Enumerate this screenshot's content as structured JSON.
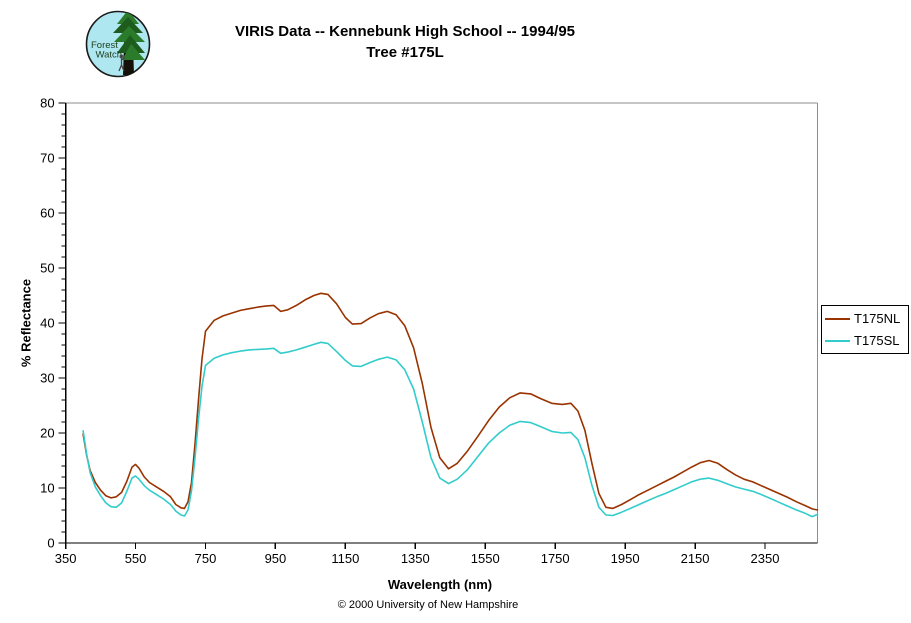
{
  "header": {
    "title_line1": "VIRIS Data -- Kennebunk High School -- 1994/95",
    "title_line2": "Tree #175L"
  },
  "logo": {
    "text_line1": "Forest",
    "text_line2": "Watch",
    "bg_color": "#aee7ef",
    "foliage_color": "#2a7c2a",
    "foliage_dark_color": "#1e5c1e",
    "trunk_color": "#151008",
    "text_color": "#1d3d1d"
  },
  "footer": {
    "copyright": "© 2000 University of New Hampshire"
  },
  "chart_data": {
    "type": "line",
    "title": "VIRIS Data -- Kennebunk High School -- 1994/95  Tree #175L",
    "xlabel": "Wavelength (nm)",
    "ylabel": "% Reflectance",
    "xlim": [
      350,
      2500
    ],
    "ylim": [
      0,
      80
    ],
    "x_ticks": [
      350,
      550,
      750,
      950,
      1150,
      1350,
      1550,
      1750,
      1950,
      2150,
      2350
    ],
    "y_tick_step": 10,
    "y_minor_step": 2,
    "grid": false,
    "legend_position": "right-outside",
    "axis_color": "#000000",
    "border_color": "#8c8c8c",
    "x": [
      400,
      410,
      420,
      435,
      450,
      465,
      480,
      495,
      510,
      525,
      540,
      550,
      560,
      575,
      590,
      610,
      630,
      650,
      665,
      680,
      690,
      700,
      710,
      720,
      730,
      740,
      750,
      775,
      800,
      825,
      850,
      875,
      900,
      925,
      945,
      965,
      985,
      1010,
      1035,
      1060,
      1080,
      1100,
      1125,
      1150,
      1170,
      1195,
      1220,
      1245,
      1270,
      1295,
      1320,
      1345,
      1370,
      1395,
      1420,
      1445,
      1470,
      1500,
      1530,
      1560,
      1590,
      1620,
      1650,
      1680,
      1710,
      1740,
      1770,
      1795,
      1815,
      1835,
      1855,
      1875,
      1895,
      1915,
      1940,
      1965,
      1990,
      2015,
      2040,
      2065,
      2090,
      2115,
      2140,
      2165,
      2190,
      2215,
      2240,
      2265,
      2290,
      2315,
      2340,
      2365,
      2390,
      2415,
      2440,
      2465,
      2485,
      2500
    ],
    "series": [
      {
        "name": "T175NL",
        "color": "#993300",
        "values": [
          19.8,
          16.0,
          13.2,
          11.0,
          9.6,
          8.6,
          8.2,
          8.4,
          9.2,
          11.2,
          13.8,
          14.3,
          13.6,
          12.0,
          11.0,
          10.2,
          9.4,
          8.4,
          7.0,
          6.4,
          6.3,
          7.5,
          11.0,
          18.0,
          26.0,
          33.5,
          38.5,
          40.5,
          41.3,
          41.8,
          42.3,
          42.6,
          42.9,
          43.1,
          43.2,
          42.1,
          42.4,
          43.2,
          44.2,
          45.0,
          45.4,
          45.2,
          43.5,
          41.0,
          39.8,
          39.9,
          40.9,
          41.7,
          42.1,
          41.5,
          39.5,
          35.5,
          29.0,
          21.0,
          15.5,
          13.5,
          14.5,
          16.8,
          19.5,
          22.3,
          24.7,
          26.4,
          27.3,
          27.1,
          26.2,
          25.4,
          25.2,
          25.4,
          24.0,
          20.5,
          14.5,
          9.0,
          6.5,
          6.3,
          7.0,
          7.9,
          8.8,
          9.6,
          10.4,
          11.2,
          12.0,
          12.9,
          13.8,
          14.6,
          15.0,
          14.5,
          13.4,
          12.4,
          11.6,
          11.1,
          10.4,
          9.7,
          9.0,
          8.3,
          7.5,
          6.8,
          6.2,
          6.0
        ]
      },
      {
        "name": "T175SL",
        "color": "#33cccc",
        "values": [
          20.4,
          16.2,
          12.8,
          10.2,
          8.6,
          7.3,
          6.6,
          6.5,
          7.3,
          9.4,
          11.8,
          12.2,
          11.6,
          10.4,
          9.6,
          8.8,
          8.0,
          7.0,
          5.8,
          5.1,
          4.9,
          6.0,
          9.5,
          15.5,
          22.5,
          28.5,
          32.3,
          33.6,
          34.2,
          34.6,
          34.9,
          35.1,
          35.2,
          35.3,
          35.4,
          34.5,
          34.7,
          35.1,
          35.6,
          36.1,
          36.5,
          36.3,
          34.8,
          33.2,
          32.2,
          32.1,
          32.8,
          33.4,
          33.8,
          33.3,
          31.5,
          28.0,
          22.0,
          15.5,
          11.8,
          10.8,
          11.6,
          13.4,
          15.8,
          18.2,
          20.0,
          21.4,
          22.1,
          21.9,
          21.1,
          20.3,
          20.0,
          20.1,
          18.8,
          15.5,
          10.5,
          6.5,
          5.1,
          5.0,
          5.6,
          6.3,
          7.0,
          7.7,
          8.4,
          9.0,
          9.7,
          10.4,
          11.1,
          11.6,
          11.8,
          11.4,
          10.8,
          10.2,
          9.8,
          9.4,
          8.8,
          8.1,
          7.4,
          6.7,
          6.0,
          5.4,
          4.8,
          5.2
        ]
      }
    ]
  }
}
